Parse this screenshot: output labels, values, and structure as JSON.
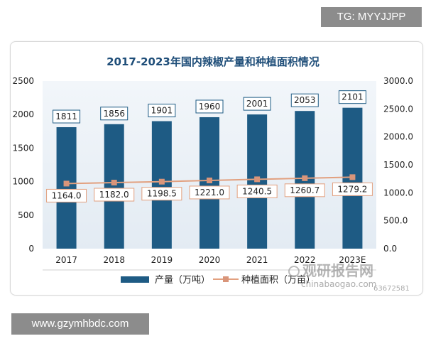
{
  "header_tag": "TG: MYYJJPP",
  "footer_url": "www.gzymhbdc.com",
  "watermark": {
    "cn": "观研报告网",
    "en": "chinabaogao.com",
    "code": "63672581"
  },
  "colors": {
    "bar": "#1e5b84",
    "line": "#e2a07f",
    "marker": "#d9957a",
    "title": "#1f4e79",
    "plot_bg": "#eef3f8"
  },
  "chart_data": {
    "type": "bar",
    "title": "2017-2023年国内辣椒产量和种植面积情况",
    "categories": [
      "2017",
      "2018",
      "2019",
      "2020",
      "2021",
      "2022",
      "2023E"
    ],
    "series": [
      {
        "name": "产量（万吨）",
        "type": "bar",
        "axis": "left",
        "values": [
          1811,
          1856,
          1901,
          1960,
          2001,
          2053,
          2101
        ],
        "labels": [
          "1811",
          "1856",
          "1901",
          "1960",
          "2001",
          "2053",
          "2101"
        ]
      },
      {
        "name": "种植面积（万亩）",
        "type": "line",
        "axis": "right",
        "values": [
          1164.0,
          1182.0,
          1198.5,
          1221.0,
          1240.5,
          1260.7,
          1279.2
        ],
        "labels": [
          "1164.0",
          "1182.0",
          "1198.5",
          "1221.0",
          "1240.5",
          "1260.7",
          "1279.2"
        ]
      }
    ],
    "y_left": {
      "range": [
        0,
        2500
      ],
      "ticks": [
        0,
        500,
        1000,
        1500,
        2000,
        2500
      ],
      "tick_labels": [
        "0",
        "500",
        "1000",
        "1500",
        "2000",
        "2500"
      ]
    },
    "y_right": {
      "range": [
        0,
        3000
      ],
      "ticks": [
        0,
        500,
        1000,
        1500,
        2000,
        2500,
        3000
      ],
      "tick_labels": [
        "0.0",
        "500.0",
        "1000.0",
        "1500.0",
        "2000.0",
        "2500.0",
        "3000.0"
      ]
    },
    "grid": false,
    "legend_position": "bottom"
  }
}
